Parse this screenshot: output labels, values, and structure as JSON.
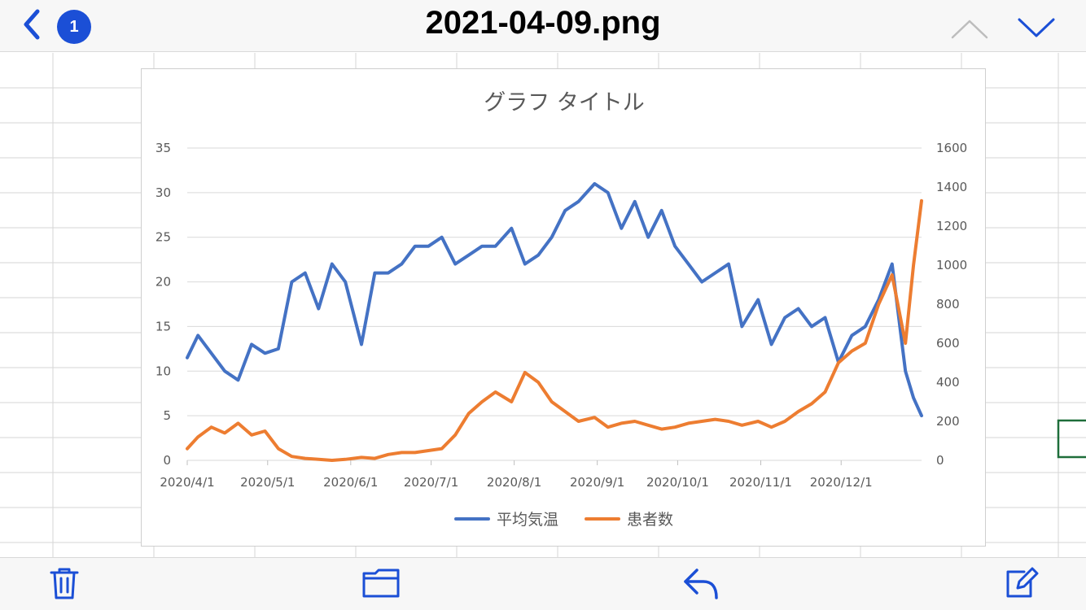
{
  "header": {
    "back_badge": "1",
    "file_title": "2021-04-09.png"
  },
  "icons": {
    "back": "chevron-left-icon",
    "up": "chevron-up-icon",
    "down": "chevron-down-icon",
    "trash": "trash-icon",
    "folder": "folder-icon",
    "reply": "reply-icon",
    "compose": "compose-icon"
  },
  "colors": {
    "accent": "#1b4fd6",
    "nav_up_disabled": "#bdbdbd",
    "series_temperature": "#4472c4",
    "series_patients": "#ed7d31",
    "selected_cell_border": "#1e6e3a"
  },
  "chart_data": {
    "type": "line",
    "title": "グラフ タイトル",
    "xlabel": "",
    "ylabel": "",
    "y2label": "",
    "x_tick_labels": [
      "2020/4/1",
      "2020/5/1",
      "2020/6/1",
      "2020/7/1",
      "2020/8/1",
      "2020/9/1",
      "2020/10/1",
      "2020/11/1",
      "2020/12/1"
    ],
    "x_range": [
      "2020-04-01",
      "2020-12-31"
    ],
    "ylim": [
      0,
      35
    ],
    "y_ticks": [
      0,
      5,
      10,
      15,
      20,
      25,
      30,
      35
    ],
    "y2lim": [
      0,
      1600
    ],
    "y2_ticks": [
      0,
      200,
      400,
      600,
      800,
      1000,
      1200,
      1400,
      1600
    ],
    "grid": true,
    "legend_position": "bottom",
    "x": [
      "2020-04-01",
      "2020-04-05",
      "2020-04-10",
      "2020-04-15",
      "2020-04-20",
      "2020-04-25",
      "2020-04-30",
      "2020-05-05",
      "2020-05-10",
      "2020-05-15",
      "2020-05-20",
      "2020-05-25",
      "2020-05-30",
      "2020-06-05",
      "2020-06-10",
      "2020-06-15",
      "2020-06-20",
      "2020-06-25",
      "2020-06-30",
      "2020-07-05",
      "2020-07-10",
      "2020-07-15",
      "2020-07-20",
      "2020-07-25",
      "2020-07-31",
      "2020-08-05",
      "2020-08-10",
      "2020-08-15",
      "2020-08-20",
      "2020-08-25",
      "2020-08-31",
      "2020-09-05",
      "2020-09-10",
      "2020-09-15",
      "2020-09-20",
      "2020-09-25",
      "2020-09-30",
      "2020-10-05",
      "2020-10-10",
      "2020-10-15",
      "2020-10-20",
      "2020-10-25",
      "2020-10-31",
      "2020-11-05",
      "2020-11-10",
      "2020-11-15",
      "2020-11-20",
      "2020-11-25",
      "2020-11-30",
      "2020-12-05",
      "2020-12-10",
      "2020-12-15",
      "2020-12-20",
      "2020-12-25",
      "2020-12-28",
      "2020-12-31"
    ],
    "series": [
      {
        "name": "平均気温",
        "axis": "left",
        "values": [
          11.5,
          14,
          12,
          10,
          9,
          13,
          12,
          12.5,
          20,
          21,
          17,
          22,
          20,
          13,
          21,
          21,
          22,
          24,
          24,
          25,
          22,
          23,
          24,
          24,
          26,
          22,
          23,
          25,
          28,
          29,
          31,
          30,
          26,
          29,
          25,
          28,
          24,
          22,
          20,
          21,
          22,
          15,
          18,
          13,
          16,
          17,
          15,
          16,
          11,
          14,
          15,
          18,
          22,
          10,
          7,
          5
        ]
      },
      {
        "name": "患者数",
        "axis": "right",
        "values": [
          60,
          120,
          170,
          140,
          190,
          130,
          150,
          60,
          20,
          10,
          5,
          0,
          5,
          15,
          10,
          30,
          40,
          40,
          50,
          60,
          130,
          240,
          300,
          350,
          300,
          450,
          400,
          300,
          250,
          200,
          220,
          170,
          190,
          200,
          180,
          160,
          170,
          190,
          200,
          210,
          200,
          180,
          200,
          170,
          200,
          250,
          290,
          350,
          500,
          560,
          600,
          800,
          950,
          600,
          1000,
          1330
        ]
      }
    ]
  }
}
